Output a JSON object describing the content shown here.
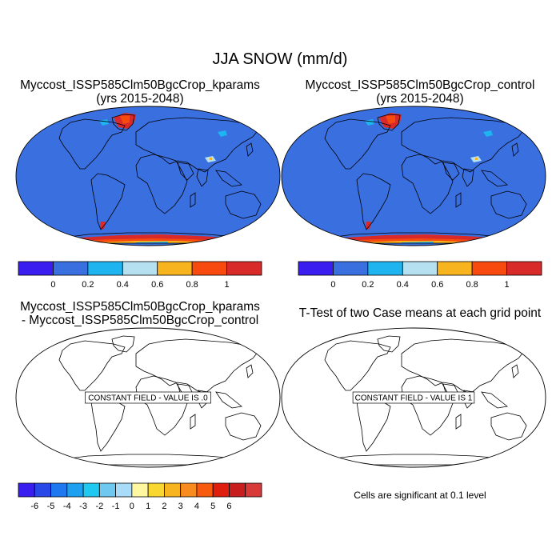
{
  "main_title": "JJA SNOW (mm/d)",
  "panels": [
    {
      "id": "kparams",
      "title_line1": "Myccost_ISSP585Clm50BgcCrop_kparams",
      "title_line2": "(yrs 2015-2048)",
      "type": "field"
    },
    {
      "id": "control",
      "title_line1": "Myccost_ISSP585Clm50BgcCrop_control",
      "title_line2": "(yrs 2015-2048)",
      "type": "field"
    },
    {
      "id": "diff",
      "title_line1": "Myccost_ISSP585Clm50BgcCrop_kparams",
      "title_line2": "- Myccost_ISSP585Clm50BgcCrop_control",
      "type": "outline",
      "label": "CONSTANT FIELD - VALUE IS .0"
    },
    {
      "id": "ttest",
      "title_line1": "T-Test of two Case means at each grid point",
      "type": "outline",
      "label": "CONSTANT FIELD - VALUE IS 1"
    }
  ],
  "colorbar_top": {
    "colors": [
      "#3a1ef0",
      "#3a6fe0",
      "#1eb4f0",
      "#b4e0f0",
      "#f8b41e",
      "#f84a0e",
      "#d82a28"
    ],
    "labels": [
      "0",
      "0.2",
      "0.4",
      "0.6",
      "0.8",
      "1"
    ]
  },
  "colorbar_diff": {
    "colors": [
      "#3a1ef0",
      "#2848e8",
      "#1e78f0",
      "#1ea0f0",
      "#1ec8f0",
      "#6ec8f0",
      "#a8dcf8",
      "#fff8a0",
      "#f8d830",
      "#f8b41e",
      "#f88c1e",
      "#f85a0e",
      "#e01e0e",
      "#c81e1e",
      "#d83a3a"
    ],
    "labels": [
      "-6",
      "-5",
      "-4",
      "-3",
      "-2",
      "-1",
      "0",
      "1",
      "2",
      "3",
      "4",
      "5",
      "6"
    ]
  },
  "significance_note": "Cells are significant at 0.1 level"
}
